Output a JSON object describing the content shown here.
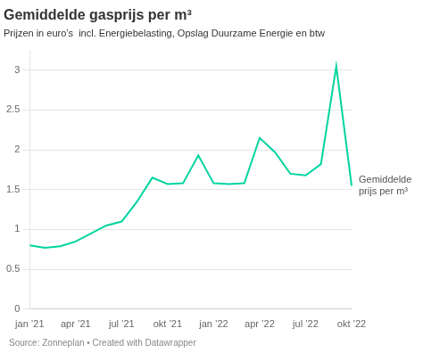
{
  "chart_data": {
    "type": "line",
    "title": "Gemiddelde gasprijs per m³",
    "subtitle": "Prijzen in euro’s  incl. Energiebelasting, Opslag Duurzame Energie en btw",
    "source": "Source: Zonneplan • Created with Datawrapper",
    "annotation": "Gemiddelde\nprijs per m³",
    "categories": [
      "jan ’21",
      null,
      null,
      "apr ’21",
      null,
      null,
      "jul ’21",
      null,
      null,
      "okt ’21",
      null,
      null,
      "jan ’22",
      null,
      null,
      "apr ’22",
      null,
      null,
      "jul ’22",
      null,
      null,
      "okt ’22"
    ],
    "values": [
      0.8,
      0.77,
      0.79,
      0.85,
      0.95,
      1.05,
      1.1,
      1.35,
      1.65,
      1.57,
      1.58,
      1.93,
      1.58,
      1.57,
      1.58,
      2.15,
      1.97,
      1.7,
      1.68,
      1.82,
      3.05,
      1.55
    ],
    "color": "#00d4a0",
    "ylim": [
      0,
      3.25
    ],
    "yticks": [
      0,
      0.5,
      1,
      1.5,
      2,
      2.5,
      3
    ],
    "grid": "y"
  }
}
